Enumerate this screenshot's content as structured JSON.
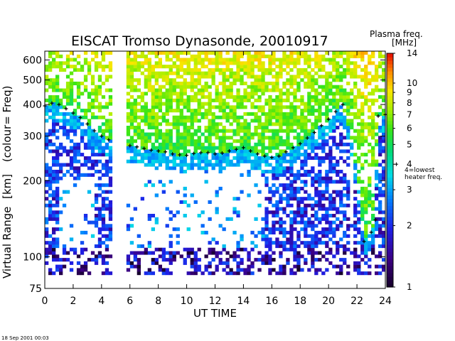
{
  "chart_data": {
    "type": "heatmap",
    "title": "EISCAT Tromso Dynasonde,  20010917",
    "xlabel": "UT TIME",
    "ylabel_main": "Virtual Range",
    "ylabel_unit": "[km]",
    "ylabel_paren": "(colour= Freq)",
    "xlim": [
      0,
      24
    ],
    "ylim": [
      75,
      650
    ],
    "yscale": "log",
    "x_ticks": [
      "0",
      "2",
      "4",
      "6",
      "8",
      "10",
      "12",
      "14",
      "16",
      "18",
      "20",
      "22",
      "24"
    ],
    "y_ticks": [
      {
        "value": 75,
        "label": "75"
      },
      {
        "value": 100,
        "label": "100"
      },
      {
        "value": 200,
        "label": "200"
      },
      {
        "value": 300,
        "label": "300"
      },
      {
        "value": 400,
        "label": "400"
      },
      {
        "value": 500,
        "label": "500"
      },
      {
        "value": 600,
        "label": "600"
      }
    ],
    "colorbar": {
      "title_line1": "Plasma freq.",
      "title_line2": "[MHz]",
      "range": [
        1,
        14
      ],
      "scale": "log",
      "ticks": [
        {
          "value": 1,
          "label": "1"
        },
        {
          "value": 2,
          "label": "2"
        },
        {
          "value": 3,
          "label": "3"
        },
        {
          "value": 4,
          "label": "4"
        },
        {
          "value": 5,
          "label": "5"
        },
        {
          "value": 6,
          "label": "6"
        },
        {
          "value": 7,
          "label": "7"
        },
        {
          "value": 8,
          "label": "8"
        },
        {
          "value": 9,
          "label": "9"
        },
        {
          "value": 10,
          "label": "10"
        },
        {
          "value": 14,
          "label": "14"
        }
      ],
      "marker_value": 4,
      "marker_note_line1": "4=lowest",
      "marker_note_line2": "heater freq."
    },
    "data_gap": [
      4.7,
      5.8
    ],
    "trace": [
      {
        "t": 0.0,
        "h": 395
      },
      {
        "t": 0.5,
        "h": 405
      },
      {
        "t": 1.0,
        "h": 400
      },
      {
        "t": 1.5,
        "h": 385
      },
      {
        "t": 2.0,
        "h": 370
      },
      {
        "t": 2.5,
        "h": 355
      },
      {
        "t": 3.0,
        "h": 335
      },
      {
        "t": 3.5,
        "h": 315
      },
      {
        "t": 4.0,
        "h": 300
      },
      {
        "t": 4.5,
        "h": 290
      },
      {
        "t": 6.0,
        "h": 275
      },
      {
        "t": 6.5,
        "h": 272
      },
      {
        "t": 7.0,
        "h": 268
      },
      {
        "t": 7.5,
        "h": 264
      },
      {
        "t": 8.0,
        "h": 262
      },
      {
        "t": 8.5,
        "h": 260
      },
      {
        "t": 9.0,
        "h": 255
      },
      {
        "t": 9.5,
        "h": 253
      },
      {
        "t": 10.0,
        "h": 252
      },
      {
        "t": 10.5,
        "h": 256
      },
      {
        "t": 11.0,
        "h": 258
      },
      {
        "t": 11.5,
        "h": 258
      },
      {
        "t": 12.0,
        "h": 255
      },
      {
        "t": 12.5,
        "h": 257
      },
      {
        "t": 13.0,
        "h": 262
      },
      {
        "t": 13.5,
        "h": 266
      },
      {
        "t": 14.0,
        "h": 270
      },
      {
        "t": 14.5,
        "h": 262
      },
      {
        "t": 15.0,
        "h": 255
      },
      {
        "t": 15.5,
        "h": 250
      },
      {
        "t": 16.0,
        "h": 247
      },
      {
        "t": 16.5,
        "h": 250
      },
      {
        "t": 17.0,
        "h": 260
      },
      {
        "t": 17.5,
        "h": 270
      },
      {
        "t": 18.0,
        "h": 280
      },
      {
        "t": 18.5,
        "h": 295
      },
      {
        "t": 19.0,
        "h": 310
      },
      {
        "t": 19.5,
        "h": 330
      },
      {
        "t": 20.0,
        "h": 350
      },
      {
        "t": 20.5,
        "h": 375
      },
      {
        "t": 21.0,
        "h": 400
      },
      {
        "t": 22.5,
        "h": 115
      },
      {
        "t": 23.0,
        "h": 125
      },
      {
        "t": 23.3,
        "h": 140
      },
      {
        "t": 23.5,
        "h": 360
      },
      {
        "t": 24.0,
        "h": 365
      }
    ],
    "footer": "18 Sep 2001 00:03"
  }
}
